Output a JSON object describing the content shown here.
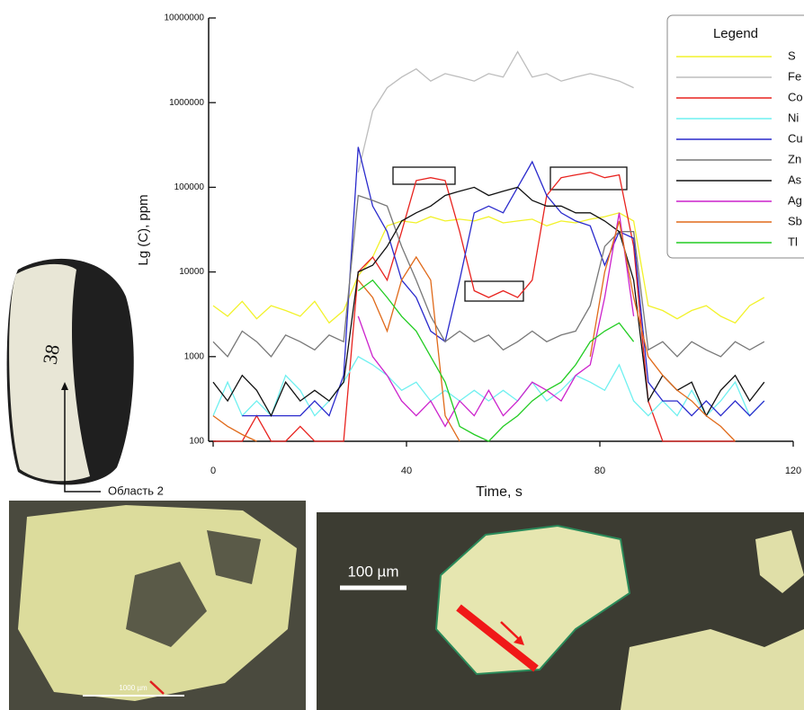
{
  "chart_data": {
    "type": "line",
    "y_label": "Lg (C), ppm",
    "x_label": "Time, s",
    "legend_title": "Legend",
    "log_y": true,
    "xlim": [
      0,
      120
    ],
    "xticks": [
      0,
      40,
      80,
      120
    ],
    "ylim": [
      100,
      10000000
    ],
    "yticks": [
      100,
      1000,
      10000,
      100000,
      1000000,
      10000000
    ],
    "x": [
      0,
      3,
      6,
      9,
      12,
      15,
      18,
      21,
      24,
      27,
      30,
      33,
      36,
      39,
      42,
      45,
      48,
      51,
      54,
      57,
      60,
      63,
      66,
      69,
      72,
      75,
      78,
      81,
      84,
      87,
      90,
      93,
      96,
      99,
      102,
      105,
      108,
      111,
      114
    ],
    "series": [
      {
        "name": "S",
        "color": "#f2f22a",
        "values": [
          4000,
          3000,
          4500,
          2800,
          4000,
          3500,
          3000,
          4500,
          2500,
          3500,
          9000,
          15000,
          35000,
          40000,
          38000,
          45000,
          40000,
          42000,
          40000,
          45000,
          38000,
          40000,
          42000,
          35000,
          40000,
          38000,
          42000,
          45000,
          50000,
          40000,
          4000,
          3500,
          2800,
          3500,
          4000,
          3000,
          2500,
          4000,
          5000
        ]
      },
      {
        "name": "Fe",
        "color": "#bdbdbd",
        "values": [
          null,
          null,
          null,
          null,
          null,
          null,
          null,
          null,
          null,
          null,
          150000,
          800000,
          1500000,
          2000000,
          2500000,
          1800000,
          2200000,
          2000000,
          1800000,
          2200000,
          2000000,
          4000000,
          2000000,
          2200000,
          1800000,
          2000000,
          2200000,
          2000000,
          1800000,
          1500000,
          null,
          null,
          null,
          null,
          null,
          null,
          null,
          null,
          null
        ]
      },
      {
        "name": "Co",
        "color": "#e8231f",
        "values": [
          100,
          100,
          100,
          200,
          100,
          100,
          150,
          100,
          100,
          100,
          10000,
          15000,
          8000,
          30000,
          120000,
          130000,
          120000,
          30000,
          6000,
          5000,
          6000,
          5000,
          8000,
          80000,
          130000,
          140000,
          150000,
          130000,
          140000,
          20000,
          300,
          100,
          100,
          100,
          100,
          100,
          100,
          null,
          null
        ]
      },
      {
        "name": "Ni",
        "color": "#6ff0f0",
        "values": [
          200,
          500,
          200,
          300,
          200,
          600,
          400,
          200,
          300,
          500,
          1000,
          800,
          600,
          400,
          500,
          300,
          400,
          300,
          400,
          300,
          400,
          300,
          500,
          300,
          400,
          600,
          500,
          400,
          800,
          300,
          200,
          300,
          200,
          400,
          200,
          300,
          500,
          200,
          300
        ]
      },
      {
        "name": "Cu",
        "color": "#2a2acc",
        "values": [
          null,
          null,
          200,
          200,
          200,
          200,
          200,
          300,
          200,
          600,
          300000,
          60000,
          30000,
          8000,
          5000,
          2000,
          1500,
          8000,
          50000,
          60000,
          50000,
          100000,
          200000,
          80000,
          50000,
          40000,
          35000,
          12000,
          30000,
          25000,
          500,
          300,
          300,
          200,
          300,
          200,
          300,
          200,
          300
        ]
      },
      {
        "name": "Zn",
        "color": "#777777",
        "values": [
          1500,
          1000,
          2000,
          1500,
          1000,
          1800,
          1500,
          1200,
          1800,
          1500,
          80000,
          70000,
          60000,
          20000,
          8000,
          3000,
          1500,
          2000,
          1500,
          1800,
          1200,
          1500,
          2000,
          1500,
          1800,
          2000,
          4000,
          20000,
          30000,
          30000,
          1200,
          1500,
          1000,
          1500,
          1200,
          1000,
          1500,
          1200,
          1500
        ]
      },
      {
        "name": "As",
        "color": "#111111",
        "values": [
          500,
          300,
          600,
          400,
          200,
          500,
          300,
          400,
          300,
          500,
          10000,
          12000,
          20000,
          40000,
          50000,
          60000,
          80000,
          90000,
          100000,
          80000,
          90000,
          100000,
          70000,
          60000,
          60000,
          50000,
          50000,
          40000,
          30000,
          8000,
          300,
          600,
          400,
          500,
          200,
          400,
          600,
          300,
          500
        ]
      },
      {
        "name": "Ag",
        "color": "#cc22cc",
        "values": [
          null,
          null,
          null,
          null,
          null,
          null,
          null,
          null,
          null,
          null,
          3000,
          1000,
          600,
          300,
          200,
          300,
          150,
          300,
          200,
          400,
          200,
          300,
          500,
          400,
          300,
          600,
          800,
          5000,
          50000,
          3000,
          null,
          null,
          null,
          null,
          null,
          null,
          null,
          null,
          null
        ]
      },
      {
        "name": "Sb",
        "color": "#e06a1a",
        "values": [
          200,
          150,
          120,
          100,
          null,
          null,
          null,
          null,
          null,
          null,
          8000,
          5000,
          2000,
          8000,
          15000,
          8000,
          200,
          100,
          null,
          null,
          null,
          null,
          null,
          null,
          null,
          null,
          1000,
          10000,
          40000,
          5000,
          1000,
          600,
          400,
          300,
          200,
          150,
          100,
          null,
          null
        ]
      },
      {
        "name": "Tl",
        "color": "#22cc22",
        "values": [
          null,
          null,
          null,
          null,
          null,
          null,
          null,
          null,
          null,
          null,
          6000,
          8000,
          5000,
          3000,
          2000,
          1000,
          500,
          150,
          120,
          100,
          150,
          200,
          300,
          400,
          500,
          800,
          1500,
          2000,
          2500,
          1500,
          null,
          null,
          null,
          null,
          null,
          null,
          null,
          null,
          null
        ]
      }
    ]
  },
  "figure": {
    "region_label": "Область 2",
    "scale_bar_left": "1000 µm",
    "scale_bar_right": "100 µm"
  }
}
